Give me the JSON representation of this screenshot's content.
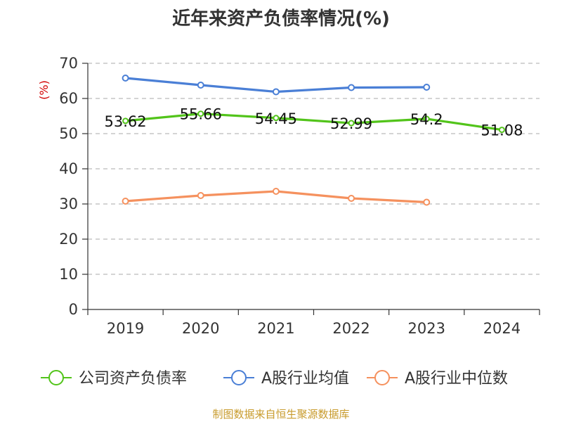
{
  "title": "近年来资产负债率情况(%)",
  "footer": "制图数据来自恒生聚源数据库",
  "colors": {
    "axis": "#333333",
    "grid": "#bbbbbb",
    "ylabel": "#d10000"
  },
  "chart_data": {
    "type": "line",
    "title": "近年来资产负债率情况(%)",
    "ylabel": "(%)",
    "xlabel": "",
    "categories": [
      "2019",
      "2020",
      "2021",
      "2022",
      "2023",
      "2024"
    ],
    "ylim": [
      0,
      70
    ],
    "yticks": [
      0,
      10,
      20,
      30,
      40,
      50,
      60,
      70
    ],
    "grid": true,
    "legend_position": "bottom",
    "series": [
      {
        "name": "公司资产负债率",
        "color": "#52c41a",
        "values": [
          53.62,
          55.66,
          54.45,
          52.99,
          54.2,
          51.08
        ],
        "labels": [
          "53.62",
          "55.66",
          "54.45",
          "52.99",
          "54.2",
          "51.08"
        ]
      },
      {
        "name": "A股行业均值",
        "color": "#4a7fd6",
        "values": [
          65.8,
          63.8,
          61.9,
          63.1,
          63.2,
          null
        ]
      },
      {
        "name": "A股行业中位数",
        "color": "#f5915e",
        "values": [
          30.8,
          32.4,
          33.6,
          31.6,
          30.5,
          null
        ]
      }
    ]
  }
}
